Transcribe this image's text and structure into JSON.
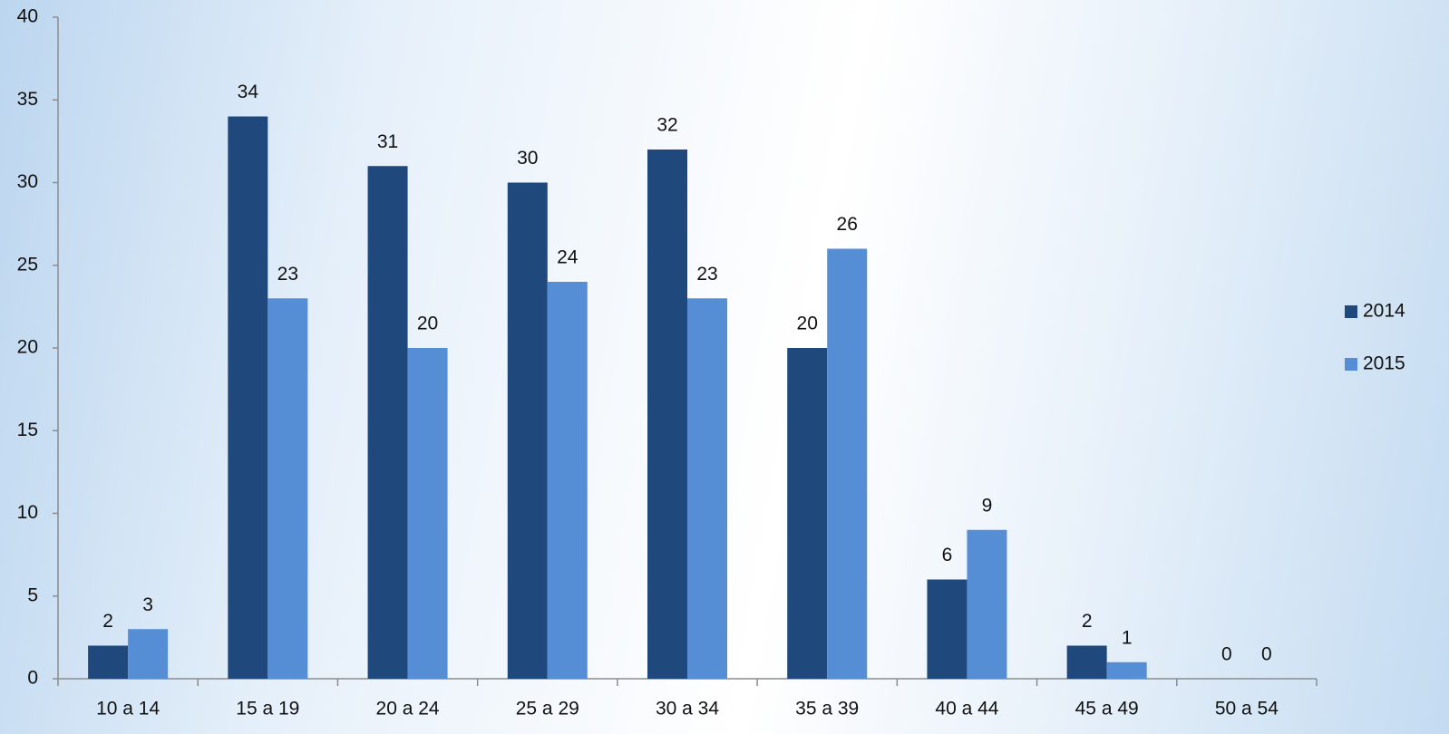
{
  "chart_data": {
    "type": "bar",
    "categories": [
      "10 a 14",
      "15 a 19",
      "20 a 24",
      "25 a 29",
      "30 a 34",
      "35 a 39",
      "40 a 44",
      "45 a 49",
      "50 a 54"
    ],
    "series": [
      {
        "name": "2014",
        "color": "#1f497d",
        "values": [
          2,
          34,
          31,
          30,
          32,
          20,
          6,
          2,
          0
        ]
      },
      {
        "name": "2015",
        "color": "#558ed5",
        "values": [
          3,
          23,
          20,
          24,
          23,
          26,
          9,
          1,
          0
        ]
      }
    ],
    "ylim": [
      0,
      40
    ],
    "yticks": [
      0,
      5,
      10,
      15,
      20,
      25,
      30,
      35,
      40
    ],
    "legend": "right"
  }
}
